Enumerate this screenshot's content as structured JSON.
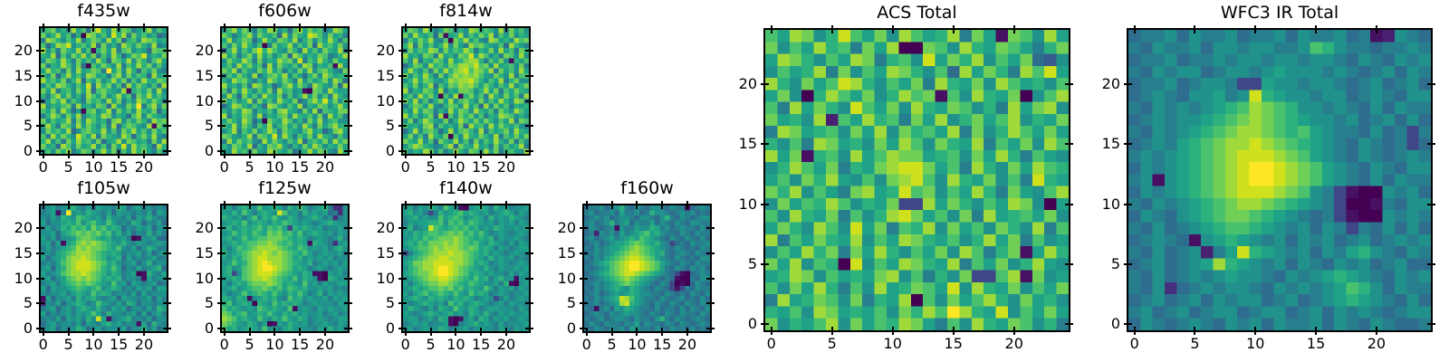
{
  "colors": {
    "background": "#ffffff",
    "frame": "#000000",
    "text": "#000000"
  },
  "colormap": {
    "name": "viridis",
    "colors": [
      "#440154",
      "#471063",
      "#482173",
      "#46307e",
      "#3f4788",
      "#375b8d",
      "#2e6d8e",
      "#277f8e",
      "#21918c",
      "#1fa287",
      "#2db27d",
      "#4ac16d",
      "#70cf57",
      "#9fda3a",
      "#cfe11c",
      "#fde725"
    ]
  },
  "chart_data": [
    {
      "type": "heatmap",
      "title": "f435w",
      "nx": 25,
      "ny": 25,
      "x_range": [
        -0.5,
        24.5
      ],
      "y_range": [
        -0.5,
        24.5
      ],
      "xticks": [
        0,
        5,
        10,
        15,
        20
      ],
      "yticks": [
        0,
        5,
        10,
        15,
        20
      ],
      "origin": "lower",
      "colormap": "viridis",
      "values_encoding": "hex digit 0-15 indexes colormap.colors; rows listed top to bottom",
      "rows": [
        "9bc8a7d9b6cea8d9cb79ad8b9",
        "c8ad9b6a0dc9b8ead7c9b8a67",
        "7dca8b9d7acb8d9c6ab8dcb9a",
        "b69dce8ab9d6c8a7db9ca8d78",
        "d8b7ca9d8b1ac9d7bc8a96cbb",
        "a9d6b8cad9c7b8da69cbe8a9c",
        "8cb9da7c9b8da6cb9d8ca7bd9",
        "c7a9db8c60b9ca8d7b9dac8b8",
        "9dab7c8d9acb7f9c8da6b9c87",
        "b8c6ad9b8dc9a7bd8c9ba6d9a",
        "dab9c7ad6b9c8ad9c7b8da9cb",
        "8b9dca8b9e7dac8b6d9ca8b7d",
        "c9d7ab8c9d6bca98d1ab9c8d8",
        "a7bd9c8a7db9c8ad9b6cad9b9",
        "69cad8b97cab8d9c7a8db9ca7",
        "d8a9bc7d9a8cb6d98caf7bd8c",
        "b9c8da690bc8ad7c9b8da9c6a",
        "7adb8c9d7ab9dc8a96bd8ca98",
        "c8b9ad7c8db9a6cd8b9ca7dbc",
        "9da7cb8d9ca8b7d6acb98d1c9",
        "8cab9d68bca9d8b7cad9b8c9b",
        "b7d9ca8eb9d7ca98db6ac9d87",
        "ad8b7c9dab8c69ad8cb9a7c8d",
        "c9a6db8c9ad8b7c9e8dab96da",
        "9b8cad79cb8ad9c6b8dac97b8"
      ]
    },
    {
      "type": "heatmap",
      "title": "f606w",
      "nx": 25,
      "ny": 25,
      "x_range": [
        -0.5,
        24.5
      ],
      "y_range": [
        -0.5,
        24.5
      ],
      "xticks": [
        0,
        5,
        10,
        15,
        20
      ],
      "yticks": [
        0,
        5,
        10,
        15,
        20
      ],
      "origin": "lower",
      "colormap": "viridis",
      "values_encoding": "hex digit 0-15 indexes colormap.colors; rows listed top to bottom",
      "rows": [
        "8bd9ca7b9dc8a6bd9cab78dc9",
        "ca79bd8ca9b6d8ca9edb8c9a7",
        "9d8acb69da8cb9d7ac8b9da7b",
        "b8c9da8b07c9ad8b9c6dab9c8",
        "6ad8b9ceadb98ca7d9b8ca9d7",
        "d9b7ac8d9b8ac6db8a9cb78ad",
        "8ca9db7c8a9dbc8e7b9da8c99",
        "9b8dac9b6d8ca9b8dc7a9b1d8",
        "cad7b98cad9b7a8c9d8bca87c",
        "7b9ca8d79bcad8b96ac8db9aa",
        "a8dbc97a8db9ca7d8b9ac8db6",
        "d9a8b7dc9a68bd9ca7db98c6d",
        "b7c9da8b9c7dab8910cb8da99",
        "8da6c9b8da9c7b8ad9c8b7da8",
        "c9b8ad7c9b8da9c68bdae9c8b",
        "69dca8b96dca8b9d7a9cb8ad9",
        "a8b9dc7a9b8cda97c8d6ba9cc",
        "d7a9cb8d7a9bc8da9b8c7d9b7",
        "9ca8db690ca9db8a7c9d8ab88",
        "b9d8ca7b9d8ac9b8da7c9bdaa",
        "8ad7b9c8adb7ca98bd9a68cd9",
        "cb98ad7cb9e8da7b9c8da97b8",
        "7d9cab87d9ca8b9d6ab9c8dac",
        "a8cb9d6a8cbd97a8c9db8a9c9",
        "98dab7c98dca9b68ad9cb87d9"
      ]
    },
    {
      "type": "heatmap",
      "title": "f814w",
      "nx": 25,
      "ny": 25,
      "x_range": [
        -0.5,
        24.5
      ],
      "y_range": [
        -0.5,
        24.5
      ],
      "xticks": [
        0,
        5,
        10,
        15,
        20
      ],
      "yticks": [
        0,
        5,
        10,
        15,
        20
      ],
      "origin": "lower",
      "colormap": "viridis",
      "values_encoding": "hex digit 0-15 indexes colormap.colors; rows listed top to bottom",
      "rows": [
        "9cb8da79cb7a8dc9ba8d7c9b8",
        "c8da9b6c19ad8b9cad7b9c8a9",
        "7b9cad87b0cad9b87dc9a8dbc",
        "ad7c9b8ad8c97dbca98b6da97",
        "8c9badc8c9badb7a9c8d9b7ca",
        "d9a8cb7d9a8cbe9db8a7cb8d8",
        "b8d7a9cb8d9acdda7b9c81a9b",
        "69cb8dab9cbddcebc8d9ab8c7",
        "9da8b7c9dacdebdcad7c9b8d9",
        "c8b9da7c8bdcdcdb98ca8d7bb",
        "8ad9cb98adcddeca8b9d7ac88",
        "b9c8ad6b9cbdcdb9ca8b9d8ac",
        "d7a9cb8d7a9ccb8ad9c7b9ca9",
        "9b8dac90b8d1ac9b7da8c9b7d",
        "c9d8b7ac9d8bca8c8b9da8dc7",
        "7acb9d87acb8d9b6d8c9b7a9a",
        "a8d9cb7a8d9cb8da9b7ca8db9",
        "d9b8ac6d1b8cac8b7a9dcb8a8",
        "8c7adb98c7adb9c9ca8b9d7cb",
        "b9a8cd7b9a8c6dab8d9ca9b87",
        "69d8bca69d8bca8d7b9ac8da9",
        "9c8b7da9c0b8da9ca8d7b9c9c",
        "ca9d8b6ca9d8b7c8b9da8c7b8",
        "8bdca978bd6ca9d9a7c8b9ad7",
        "b8a9dc8b79da8cb8d9c7ab98d"
      ]
    },
    {
      "type": "heatmap",
      "title": "f105w",
      "nx": 25,
      "ny": 25,
      "x_range": [
        -0.5,
        24.5
      ],
      "y_range": [
        -0.5,
        24.5
      ],
      "xticks": [
        0,
        5,
        10,
        15,
        20
      ],
      "yticks": [
        0,
        5,
        10,
        15,
        20
      ],
      "origin": "lower",
      "colormap": "viridis",
      "values_encoding": "hex digit 0-15 indexes colormap.colors; rows listed top to bottom",
      "rows": [
        "789789a87969887a968978787",
        "78917f898a987969887879698",
        "8797a98ba9897a8879698a877",
        "96889a9b8ab98b9787a968796",
        "7978a9bab9cab9a9687989688",
        "88969abcbcbcab8a79687a797",
        "9796889bccba9a88970188966",
        "896919acdcdcba98a87987898",
        "79789abdcdccba9b87968a977",
        "8879abcdddcba9a9788979689",
        "9689acddedcba89a697878977",
        "7879bcdeeedcb9a878968a788",
        "8969acdeeedca9b96879789a6",
        "9789bcddedcba8a978901a879",
        "89689bcdcdcb9a9a788719788",
        "78979abcbcba98b8969878967",
        "969889aba9ab89a9787989699",
        "8788979a98b9a978879697888",
        "1968897a89a87896988789697",
        "2879689a978b98797a9688788",
        "78968979a98a87989688797a9",
        "9687897989b97a88789696897",
        "787969897a8e91789a7879688",
        "6897887969879a89788196a87",
        "7896878a968978879688a7968"
      ]
    },
    {
      "type": "heatmap",
      "title": "f125w",
      "nx": 25,
      "ny": 25,
      "x_range": [
        -0.5,
        24.5
      ],
      "y_range": [
        -0.5,
        24.5
      ],
      "xticks": [
        0,
        5,
        10,
        15,
        20
      ],
      "yticks": [
        0,
        5,
        10,
        15,
        20
      ],
      "origin": "lower",
      "colormap": "viridis",
      "values_encoding": "hex digit 0-15 indexes colormap.colors; rows listed top to bottom",
      "rows": [
        "8979a98b89a97a8b9789a7338",
        "98a8b979a98eb897a89896738",
        "a98979b8a9b98a9789a978378",
        "89a9b89a98a9ba9898789a988",
        "9a89a9ab9bab94a9a98978897",
        "89b9a9ba9cbcab9b89a989798",
        "9a89b9abbcccba9a9789878a7",
        "89a9abbccdcbab9a91a987389",
        "979babcddddcba9ba898979a8",
        "a89abcddedcdcba9b97898897",
        "98a9bcdeedddcb9a898989788",
        "89b9acdefeddcba98a7898979",
        "9a89bcdeffedcb9a978987898",
        "9a48bcdeeedcba98a91109897",
        "89a9bcddedcba9b8a9810a988",
        "979a9bcccdcb9a98b89798899",
        "89a89abbcbab9ba9a88989787",
        "9789b9aba9b98a9b978a79898",
        "a98a9189a9a87b9a898897989",
        "9b89a90a98b9a9a9789888798",
        "b9a9898ba9a98b18987989889",
        "cb9ab89a9b98a9a8988978978",
        "dcb9a98b98a9b98a978987899",
        "cba98a9790198a98978898798",
        "b9a89a98b8979a8988798a897"
      ]
    },
    {
      "type": "heatmap",
      "title": "f140w",
      "nx": 25,
      "ny": 25,
      "x_range": [
        -0.5,
        24.5
      ],
      "y_range": [
        -0.5,
        24.5
      ],
      "xticks": [
        0,
        5,
        10,
        15,
        20
      ],
      "yticks": [
        0,
        5,
        10,
        15,
        20
      ],
      "origin": "lower",
      "colormap": "viridis",
      "values_encoding": "hex digit 0-15 indexes colormap.colors; rows listed top to bottom",
      "rows": [
        "89798a97b981089a97a897889",
        "9a89747a89ab9a989789a9798",
        "89a8988b9aba89a97a898a987",
        "79899aab8bab9ba9897989798",
        "8a789eba9abab9a898a988989",
        "98a9abbabcbcab9b978987898",
        "89a9babcccdcba9a9a7988987",
        "9a9bacccdcdcbab98a9879798",
        "89abbcdcdddcbcb9a97987899",
        "479abcdddeddcba9a89878988",
        "89abcddeedddcba98a8989787",
        "9accddeeeeddcb9a978987898",
        "8abcddeffedcba98a87988989",
        "9abccdeffedcb9a9898879798",
        "89abcddeedcba9b9a79a88188",
        "979abccddcba9ba98897a1089",
        "89a9abbcbcab9a98b97989798",
        "979ab9aba9b98b9a978987889",
        "89a98a9a98a9a978984797898",
        "9789a9897b9a89a9878979887",
        "8a98797a98b98a97899888798",
        "98789a989a897a98a87989889",
        "8997897a9101897a979897898",
        "78989788910789a8987978889",
        "8978988a97989789887987988"
      ]
    },
    {
      "type": "heatmap",
      "title": "f160w",
      "nx": 25,
      "ny": 25,
      "x_range": [
        -0.5,
        24.5
      ],
      "y_range": [
        -0.5,
        24.5
      ],
      "xticks": [
        0,
        5,
        10,
        15,
        20
      ],
      "yticks": [
        0,
        5,
        10,
        15,
        20
      ],
      "origin": "lower",
      "colormap": "viridis",
      "values_encoding": "hex digit 0-15 indexes colormap.colors; rows listed top to bottom",
      "rows": [
        "6778678a76876887687716787",
        "7867786977867a88767878676",
        "6787867887688768a76876788",
        "78678a7896877968768768877",
        "6876781877988a97867877686",
        "67287869789ab9a8776876877",
        "786789789a9ba987687687686",
        "67867899abcba9a8746768778",
        "7687899abcdcba98768767687",
        "678789abcddcba9a767876876",
        "76879abcdeedcb98768767688",
        "6789abcdeffedcb9876876877",
        "76789bcdeffedcb9768768786",
        "6789abcdeedcba98764106787",
        "76789abcdcba9876761007688",
        "678789abcba98768740106876",
        "768789a98a987687641476877",
        "678678989a988776876768768",
        "768789aedb987768767867686",
        "6786789dea987687687687687",
        "76178698a9877686776868768",
        "6787687898876876876877687",
        "767867887687768a768767876",
        "6876877687968776876876787",
        "7687687869877687687768676"
      ]
    },
    {
      "type": "heatmap",
      "title": "ACS Total",
      "nx": 25,
      "ny": 25,
      "x_range": [
        -0.5,
        24.5
      ],
      "y_range": [
        -0.5,
        24.5
      ],
      "xticks": [
        0,
        5,
        10,
        15,
        20
      ],
      "yticks": [
        0,
        5,
        10,
        15,
        20
      ],
      "origin": "lower",
      "colormap": "viridis",
      "values_encoding": "hex digit 0-15 indexes colormap.colors; rows listed top to bottom",
      "rows": [
        "b9dc8aeb9c8db9ad7c91cb8d9",
        "c8b9dab7c9d00cb8da9cb97ac",
        "9dca8b9dc7ab8e9cad8b9c658",
        "8b9ad7c8b9dca8b6d9ca7dbe9",
        "da8c9beda8b9c7da9c8db9a8b",
        "9c80adb9c8adbc1b8da9c08bd",
        "b7d9ca8eb9c8da9cb8a7d9cd8",
        "c9a8d2b9dab7c9d8ac9bd8a9c",
        "7dc9ab8c9d8cab9d7c8adb9c9",
        "a8b7dc9a8c9db8ca9d7b9c8db",
        "d9c1ab8d9bdcc9ab8c9da7b98",
        "8adb9c7a9cdeec9b7da8c9dba",
        "9b8cad98b8cdeb8da9c8b7ea9",
        "cad8b97cd9aebc8b9da7c98bd",
        "8c9badb8a9c44d9ca8b9dc809",
        "b8da9c7b8adec9b8c7d9ab9c8",
        "9ca8db8e9c7bad8c9b8ca8d7b",
        "d7b9ca9d8b9dca9b8ad9c7b89",
        "8b9dac7c9da8b9c8db7ac19da",
        "c9d8ba0e8b9dca9d7b9c8ad98",
        "9adc8b9a9cd8b7a8c44bd1c89",
        "b8c9da7b8d9acb9e8da9c8b9c",
        "7d9acb8c7a9d0b8c9bda8c9a8",
        "a9b8dc9a9b8cadbfda9e8b9c9",
        "c8a9bd8c9badc97b8da9cb8a7"
      ]
    },
    {
      "type": "heatmap",
      "title": "WFC3 IR Total",
      "nx": 25,
      "ny": 25,
      "x_range": [
        -0.5,
        24.5
      ],
      "y_range": [
        -0.5,
        24.5
      ],
      "xticks": [
        0,
        5,
        10,
        15,
        20
      ],
      "yticks": [
        0,
        5,
        10,
        15,
        20
      ],
      "origin": "lower",
      "colormap": "viridis",
      "values_encoding": "hex digit 0-15 indexes colormap.colors; rows listed top to bottom",
      "rows": [
        "6778687786778687786712876",
        "768778688788778ba87767787",
        "6778677878878878876876878",
        "7687886788789888787678687",
        "6778678874498878876786786",
        "6787688978ea9887886787688",
        "76878789abdcba88787686877",
        "6787889abcdcba98878678686",
        "768789abcddcbab9877686747",
        "67879abcddedcba9876876746",
        "78789abcdeeedcb9876876787",
        "68789abcdeffedcb987687688",
        "78189abcdeffedcb987686877",
        "68789abcdeeedcb8741008786",
        "768789abcddcba98740017688",
        "687689abccba9876741008787",
        "7686789abba98786874768686",
        "67876189a9878687867867878",
        "768678279ea98786879a87687",
        "6786789da9878687687867866",
        "76867878988768789a9876878",
        "768367878876878789ba86877",
        "678678687886786789a987686",
        "7867867886788678687876788",
        "6876787687868778687687667"
      ]
    }
  ]
}
